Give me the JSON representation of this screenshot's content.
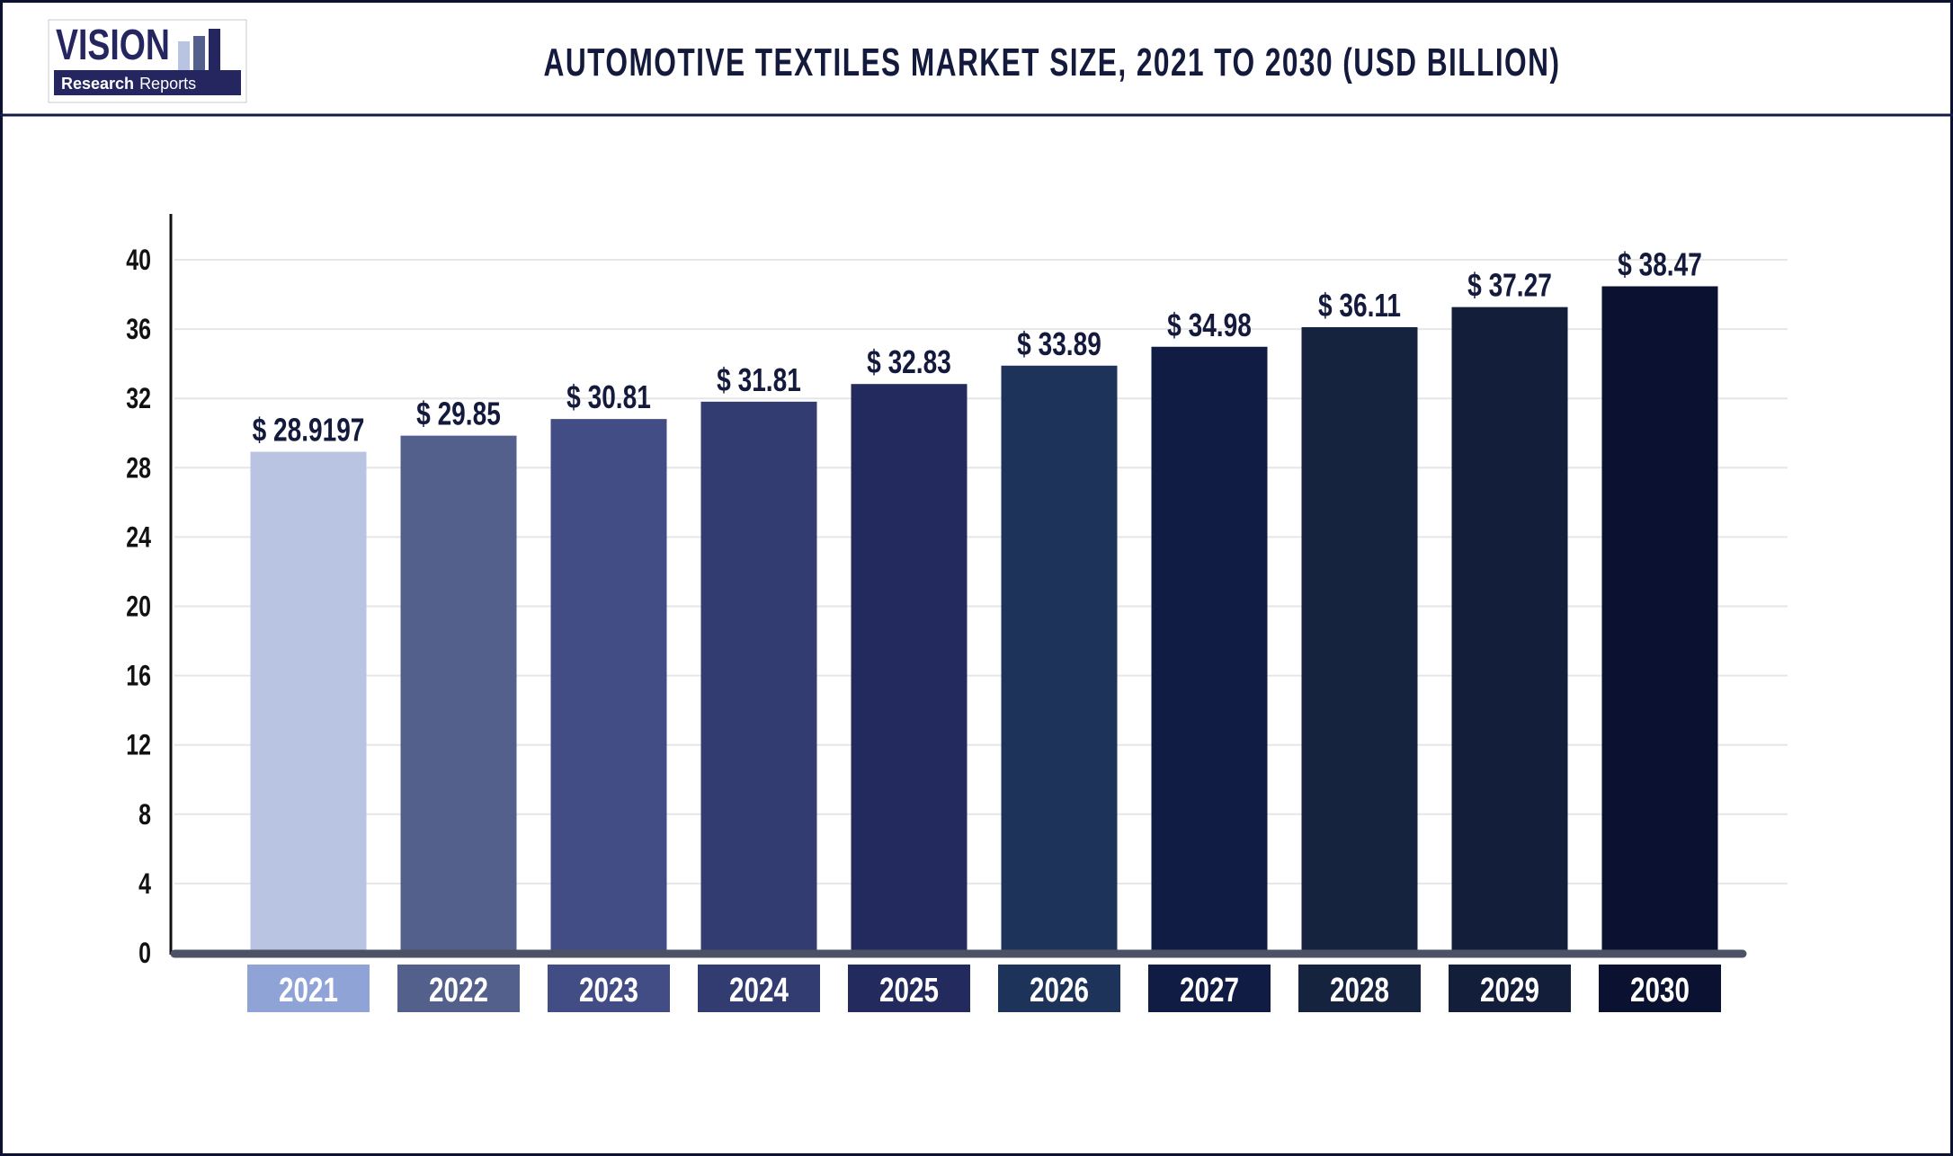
{
  "header": {
    "title": "AUTOMOTIVE TEXTILES MARKET SIZE, 2021 TO 2030 (USD BILLION)",
    "logo": {
      "word": "VISION",
      "sub_bold": "Research",
      "sub_light": "Reports"
    }
  },
  "colors": {
    "frame": "#0b1231",
    "title": "#141a3c",
    "grid": "#e6e6e6",
    "baseline": "#4d5166",
    "bars": [
      "#b9c3e2",
      "#54608c",
      "#434d85",
      "#323c70",
      "#232a5e",
      "#1e3359",
      "#111c45",
      "#16233f",
      "#121e3a",
      "#0b1231"
    ],
    "label_boxes": [
      "#8fa3d6",
      "#54608c",
      "#434d85",
      "#323c70",
      "#232a5e",
      "#1e3359",
      "#111c45",
      "#16233f",
      "#121e3a",
      "#0b1231"
    ]
  },
  "chart_data": {
    "type": "bar",
    "title": "AUTOMOTIVE TEXTILES MARKET SIZE, 2021 TO 2030 (USD BILLION)",
    "xlabel": "",
    "ylabel": "",
    "categories": [
      "2021",
      "2022",
      "2023",
      "2024",
      "2025",
      "2026",
      "2027",
      "2028",
      "2029",
      "2030"
    ],
    "values": [
      28.9197,
      29.85,
      30.81,
      31.81,
      32.83,
      33.89,
      34.98,
      36.11,
      37.27,
      38.47
    ],
    "data_labels": [
      "$ 28.9197",
      "$ 29.85",
      "$ 30.81",
      "$ 31.81",
      "$ 32.83",
      "$ 33.89",
      "$ 34.98",
      "$ 36.11",
      "$ 37.27",
      "$ 38.47"
    ],
    "ylim": [
      0,
      40
    ],
    "yticks": [
      "0",
      "4",
      "8",
      "12",
      "16",
      "20",
      "24",
      "28",
      "32",
      "36",
      "40"
    ],
    "grid": true,
    "legend": "none"
  }
}
